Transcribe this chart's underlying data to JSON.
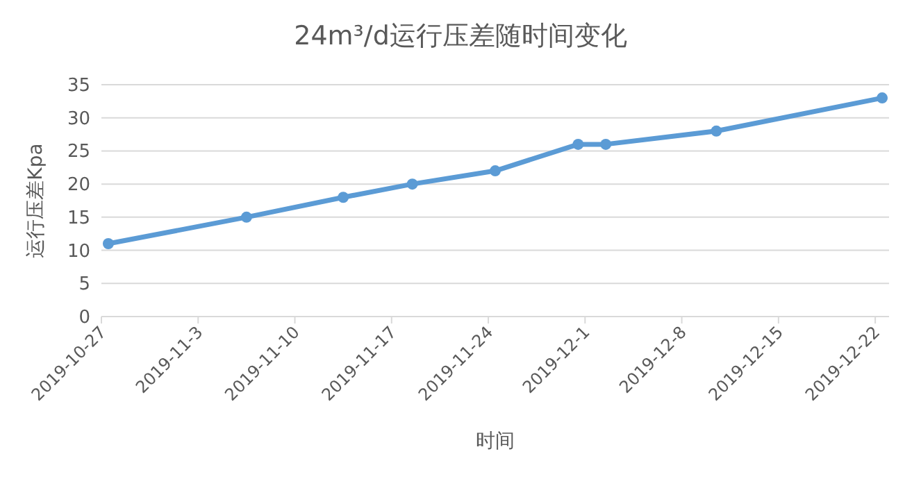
{
  "chart_data": {
    "type": "line",
    "title": "24m³/d运行压差随时间变化",
    "xlabel": "时间",
    "ylabel": "运行压差Kpa",
    "x": [
      "2019-10-27T12:00",
      "2019-11-06T12:00",
      "2019-11-13T12:00",
      "2019-11-18T12:00",
      "2019-11-24T12:00",
      "2019-11-30T12:00",
      "2019-12-02T12:00",
      "2019-12-10T12:00",
      "2019-12-22T12:00"
    ],
    "series": [
      {
        "color": "#5b9bd5",
        "values": [
          11,
          15,
          18,
          20,
          22,
          26,
          26,
          28,
          33
        ]
      }
    ],
    "xlim": [
      "2019-10-27",
      "2019-12-23"
    ],
    "xticks": [
      {
        "value": "2019-10-27",
        "label": "2019-10-27"
      },
      {
        "value": "2019-11-03",
        "label": "2019-11-3"
      },
      {
        "value": "2019-11-10",
        "label": "2019-11-10"
      },
      {
        "value": "2019-11-17",
        "label": "2019-11-17"
      },
      {
        "value": "2019-11-24",
        "label": "2019-11-24"
      },
      {
        "value": "2019-12-01",
        "label": "2019-12-1"
      },
      {
        "value": "2019-12-08",
        "label": "2019-12-8"
      },
      {
        "value": "2019-12-15",
        "label": "2019-12-15"
      },
      {
        "value": "2019-12-22",
        "label": "2019-12-22"
      }
    ],
    "ylim": [
      0,
      35
    ],
    "yticks": [
      0,
      5,
      10,
      15,
      20,
      25,
      30,
      35
    ],
    "grid": "y",
    "marker": "circle",
    "line_style": "solid"
  }
}
